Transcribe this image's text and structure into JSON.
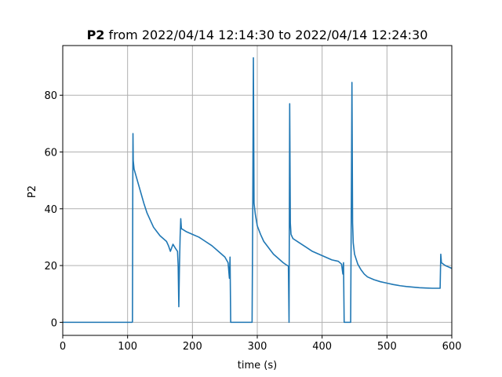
{
  "chart_data": {
    "type": "line",
    "title_bold": "P2",
    "title_rest": " from 2022/04/14 12:14:30 to 2022/04/14 12:24:30",
    "xlabel": "time (s)",
    "ylabel": "P2",
    "xlim": [
      0,
      600
    ],
    "ylim": [
      -4.6,
      97.5
    ],
    "xticks": [
      0,
      100,
      200,
      300,
      400,
      500,
      600
    ],
    "yticks": [
      0,
      20,
      40,
      60,
      80
    ],
    "grid": true,
    "series": [
      {
        "color": "#1f77b4",
        "points": [
          [
            0,
            0
          ],
          [
            107,
            0
          ],
          [
            107.5,
            0.2
          ],
          [
            108,
            48
          ],
          [
            108.3,
            66.5
          ],
          [
            108.7,
            57
          ],
          [
            110,
            54
          ],
          [
            115,
            50
          ],
          [
            120,
            46
          ],
          [
            125,
            42
          ],
          [
            130,
            38.5
          ],
          [
            135,
            36
          ],
          [
            140,
            33.5
          ],
          [
            145,
            32
          ],
          [
            150,
            30.5
          ],
          [
            155,
            29.5
          ],
          [
            160,
            28.5
          ],
          [
            163,
            27
          ],
          [
            166,
            25
          ],
          [
            170,
            27.5
          ],
          [
            174,
            26
          ],
          [
            177,
            25
          ],
          [
            178,
            20
          ],
          [
            179,
            5.5
          ],
          [
            180,
            20
          ],
          [
            181,
            30
          ],
          [
            182,
            36.5
          ],
          [
            183,
            33
          ],
          [
            190,
            32
          ],
          [
            200,
            31
          ],
          [
            210,
            30
          ],
          [
            220,
            28.5
          ],
          [
            230,
            27
          ],
          [
            240,
            25
          ],
          [
            250,
            23
          ],
          [
            255,
            21
          ],
          [
            257,
            15.5
          ],
          [
            258,
            23
          ],
          [
            259,
            0
          ],
          [
            292,
            0
          ],
          [
            293,
            38
          ],
          [
            294,
            93.2
          ],
          [
            295,
            42
          ],
          [
            297,
            38
          ],
          [
            300,
            34
          ],
          [
            305,
            31
          ],
          [
            310,
            28.5
          ],
          [
            315,
            27
          ],
          [
            320,
            25.5
          ],
          [
            325,
            24
          ],
          [
            330,
            23
          ],
          [
            335,
            22
          ],
          [
            340,
            21
          ],
          [
            345,
            20.2
          ],
          [
            348,
            19.8
          ],
          [
            349,
            0
          ],
          [
            350,
            77
          ],
          [
            351,
            35
          ],
          [
            352,
            31
          ],
          [
            355,
            29.5
          ],
          [
            365,
            28
          ],
          [
            375,
            26.5
          ],
          [
            385,
            25
          ],
          [
            395,
            24
          ],
          [
            405,
            23
          ],
          [
            415,
            22
          ],
          [
            425,
            21.5
          ],
          [
            430,
            20.5
          ],
          [
            432,
            17
          ],
          [
            433,
            21
          ],
          [
            434,
            0
          ],
          [
            444,
            0
          ],
          [
            445,
            40
          ],
          [
            446,
            84.5
          ],
          [
            447,
            35
          ],
          [
            448,
            28
          ],
          [
            450,
            24
          ],
          [
            455,
            20.5
          ],
          [
            460,
            18.5
          ],
          [
            465,
            17
          ],
          [
            470,
            16
          ],
          [
            480,
            15
          ],
          [
            490,
            14.3
          ],
          [
            500,
            13.8
          ],
          [
            510,
            13.3
          ],
          [
            520,
            12.9
          ],
          [
            530,
            12.6
          ],
          [
            540,
            12.4
          ],
          [
            550,
            12.2
          ],
          [
            560,
            12.1
          ],
          [
            570,
            12.0
          ],
          [
            582,
            12.0
          ],
          [
            583,
            24
          ],
          [
            584,
            21
          ],
          [
            590,
            20
          ],
          [
            595,
            19.5
          ],
          [
            600,
            19
          ]
        ]
      }
    ]
  }
}
